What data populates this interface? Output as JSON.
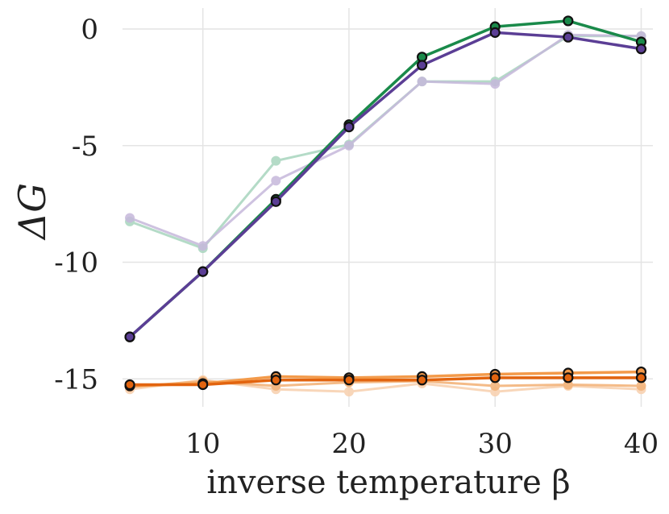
{
  "chart_data": {
    "type": "line",
    "title": "",
    "xlabel": "inverse temperature β",
    "ylabel": "ΔG",
    "xlim": [
      4.5,
      40.8
    ],
    "ylim": [
      -16.2,
      0.9
    ],
    "grid": true,
    "x_ticks": [
      10,
      20,
      30,
      40
    ],
    "x_tick_labels": [
      "10",
      "20",
      "30",
      "40"
    ],
    "y_ticks": [
      0,
      -5,
      -10,
      -15
    ],
    "y_tick_labels": [
      "0",
      "-5",
      "-10",
      "-15"
    ],
    "x": [
      5,
      10,
      15,
      20,
      25,
      30,
      35,
      40
    ],
    "series": [
      {
        "name": "green-faded",
        "color": "#a8d5be",
        "opacity": 0.85,
        "outlined": false,
        "values": [
          -8.25,
          -9.4,
          -5.65,
          -4.95,
          -2.25,
          -2.25,
          -0.3,
          -0.3
        ]
      },
      {
        "name": "purple-faded",
        "color": "#c6b8db",
        "opacity": 0.85,
        "outlined": false,
        "values": [
          -8.1,
          -9.3,
          -6.5,
          -5.0,
          -2.25,
          -2.35,
          -0.25,
          -0.3
        ]
      },
      {
        "name": "orange-faded-2",
        "color": "#f8d2b2",
        "opacity": 0.9,
        "outlined": false,
        "values": [
          -15.45,
          -15.05,
          -15.45,
          -15.55,
          -15.2,
          -15.55,
          -15.3,
          -15.45
        ]
      },
      {
        "name": "orange-faded-1",
        "color": "#f3b47c",
        "opacity": 0.9,
        "outlined": false,
        "values": [
          -15.35,
          -15.1,
          -15.3,
          -15.15,
          -15.1,
          -15.3,
          -15.25,
          -15.3
        ]
      },
      {
        "name": "orange-mid",
        "color": "#f39a4a",
        "opacity": 1,
        "outlined": true,
        "values": [
          -15.3,
          -15.2,
          -14.9,
          -14.95,
          -14.9,
          -14.8,
          -14.75,
          -14.7
        ]
      },
      {
        "name": "orange-dark",
        "color": "#e2640f",
        "opacity": 1,
        "outlined": true,
        "values": [
          -15.25,
          -15.25,
          -15.05,
          -15.05,
          -15.05,
          -14.95,
          -14.95,
          -14.95
        ]
      },
      {
        "name": "green",
        "color": "#1a8a4a",
        "opacity": 1,
        "outlined": true,
        "values": [
          -13.2,
          -10.4,
          -7.3,
          -4.1,
          -1.2,
          0.1,
          0.35,
          -0.55
        ]
      },
      {
        "name": "purple",
        "color": "#5b3e95",
        "opacity": 1,
        "outlined": true,
        "values": [
          -13.2,
          -10.4,
          -7.4,
          -4.2,
          -1.55,
          -0.15,
          -0.35,
          -0.85
        ]
      }
    ]
  }
}
